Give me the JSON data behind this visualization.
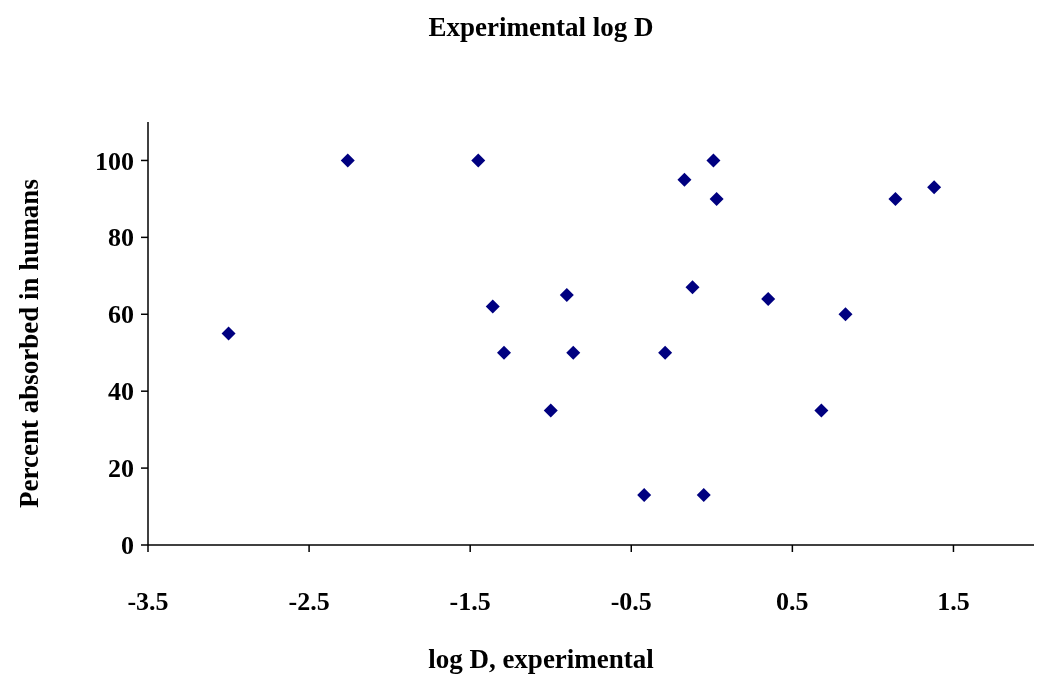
{
  "chart_data": {
    "type": "scatter",
    "title": "Experimental log D",
    "xlabel": "log D, experimental",
    "ylabel": "Percent absorbed in humans",
    "x": [
      -3.0,
      -2.26,
      -1.45,
      -1.36,
      -1.29,
      -1.0,
      -0.9,
      -0.86,
      -0.42,
      -0.29,
      -0.17,
      -0.12,
      -0.05,
      0.01,
      0.03,
      0.35,
      0.68,
      0.83,
      1.14,
      1.38
    ],
    "series": [
      {
        "color": "#000080",
        "values": [
          55,
          100,
          100,
          62,
          50,
          35,
          65,
          50,
          13,
          50,
          95,
          67,
          13,
          100,
          90,
          64,
          35,
          60,
          90,
          93
        ]
      }
    ],
    "marker": "diamond",
    "grid": false,
    "xlim": [
      -3.5,
      2
    ],
    "xticks": [
      -3.5,
      -2.5,
      -1.5,
      -0.5,
      0.5,
      1.5
    ],
    "ylim": [
      0,
      110
    ],
    "yticks": [
      0,
      20,
      40,
      60,
      80,
      100
    ]
  }
}
